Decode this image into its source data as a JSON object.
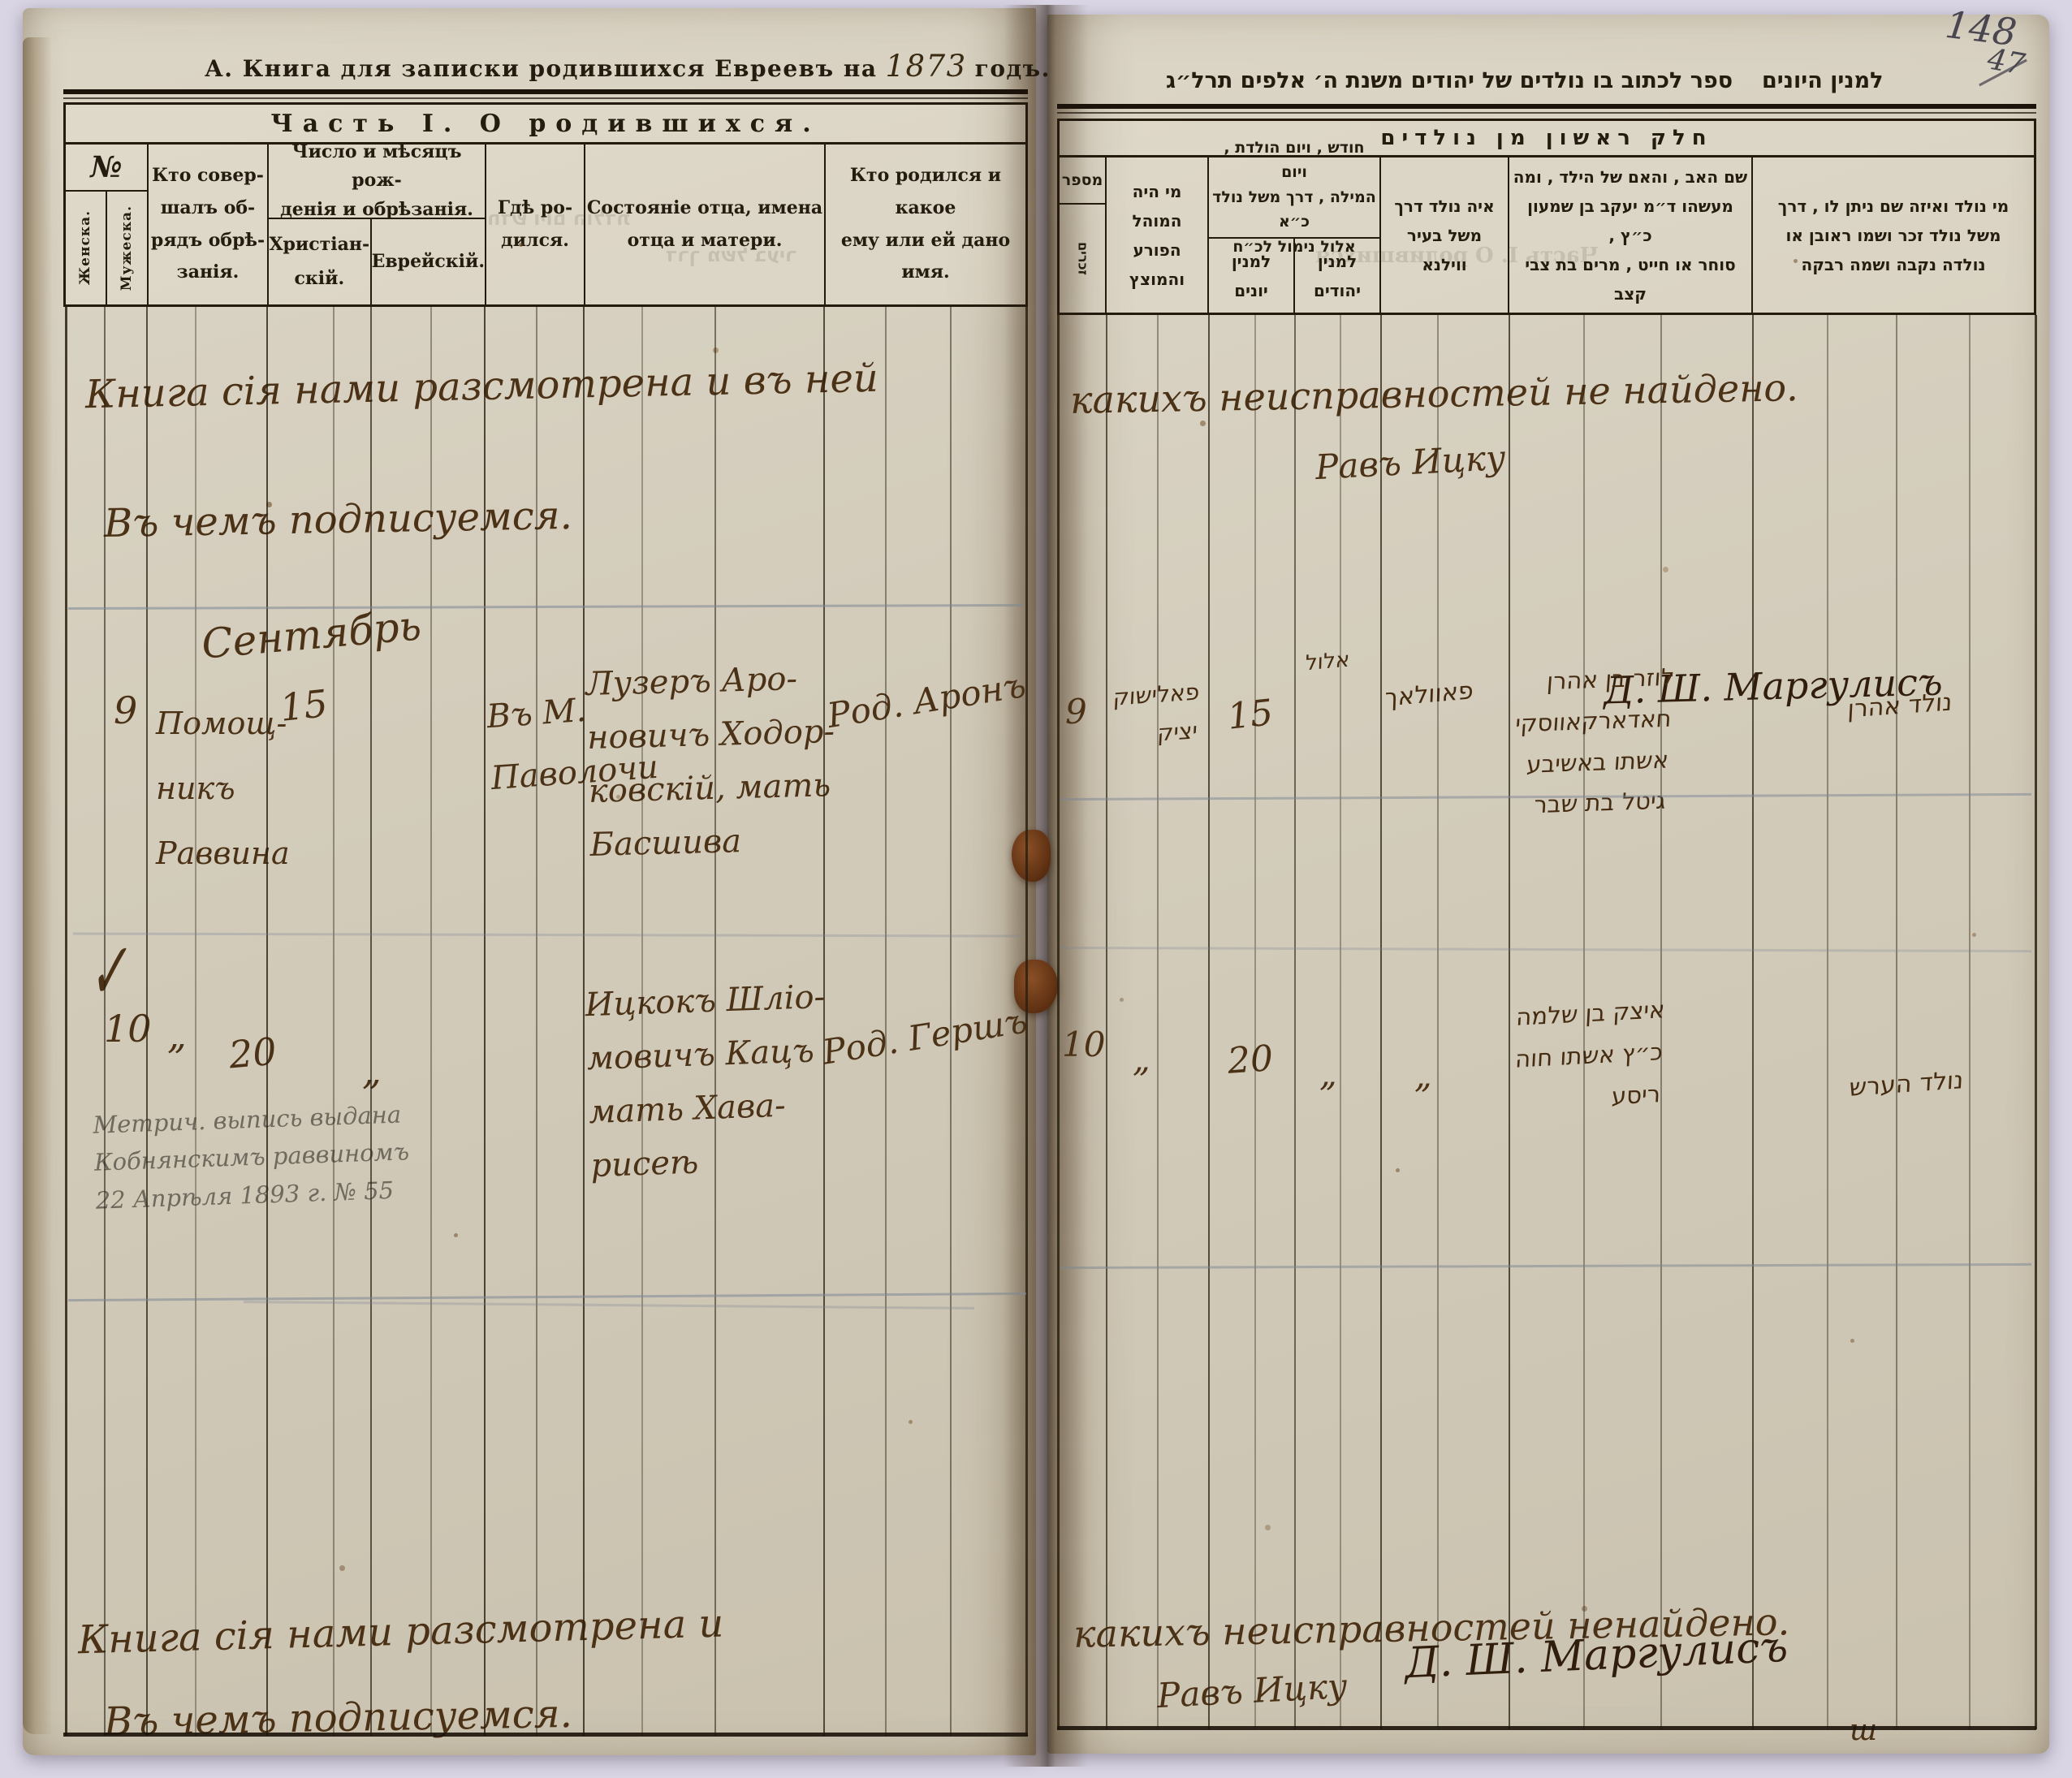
{
  "corner": {
    "page_number": "148",
    "secondary_number": "47"
  },
  "left_page": {
    "title_prefix": "А. Книга для записки родившихся Евреевъ на",
    "title_year": "1873",
    "title_suffix": "годъ.",
    "section_header": "Часть I.  О  родившихся.",
    "columns": {
      "number": "№",
      "number_female": "Женска.",
      "number_male": "Мужеска.",
      "who_performed": "Кто совер-\nшалъ об-\nрядъ обрѣ-\nзанія.",
      "date_group": "Число и мѣсяцъ рож-\nденія и обрѣзанія.",
      "date_christian": "Христіан-\nскій.",
      "date_jewish": "Еврейскій.",
      "where_born": "Гдѣ ро-\nдился.",
      "parents": "Состояніе отца, имена\nотца и матери.",
      "who_born": "Кто родился и какое\nему или ей дано имя."
    },
    "inspection_top": {
      "line1": "Книга сія нами разсмотрена и въ ней",
      "line2": "Въ чемъ подписуемся."
    },
    "inspection_bottom": {
      "line1": "Книга сія нами разсмотрена и",
      "line2": "Въ чемъ подписуемся."
    },
    "entries": [
      {
        "number": "9",
        "month": "Сентябрь",
        "circumciser": "Помощ-\nникъ\nРаввина",
        "date_christian": "15",
        "where_born": "Въ М.\nПаволочи",
        "parents": "Лузеръ Аро-\nновичъ Ходор-\nковскій, мать\nБасшива",
        "child": "Род. Аронъ"
      },
      {
        "number": "10",
        "check_mark": "✓",
        "circumciser_ditto": "„",
        "date_christian": "20",
        "where_ditto": "„",
        "parents": "Ицкокъ Шліо-\nмовичъ Кацъ\nмать Хава-\nрисеѣ",
        "child": "Род. Гершъ",
        "margin_note": "Метрич. выпись выдана\nКобнянскимъ раввиномъ\n22 Апрѣля 1893 г. № 55"
      }
    ]
  },
  "right_page": {
    "title": "ספר לכתוב בו נולדים של יהודים משנת ה׳ אלפים תרל״ג",
    "title_suffix": "למנין היונים",
    "section_header": "חלק ראשון מן נולדים",
    "columns": {
      "number": "מספר",
      "number_male": "זכרים",
      "mohel": "מי היה\nהמוהל הפורע\nוהמוצץ",
      "date_group": "חודש , ויום הולדת , ויום\nהמילה , דרך משל נולד כ״א\nאלול נימול לכ״ח",
      "date_greek": "למנין\nיונים",
      "date_jewish": "למנין\nיהודים",
      "where_born": "איה נולד דרך\nמשל בעיר\nווילנא",
      "parents": "שם האב , והאם של הילד , ומה\nמעשהו ד״מ יעקב בן שמעון כ״ץ ,\nסוחר או חייט , מרים בת צבי קצב",
      "who_born": "מי נולד ואיזה שם ניתן לו , דרך\nמשל נולד זכר ושמו ראובן או\nנולדה נקבה ושמה רבקה"
    },
    "inspection_top": {
      "line1": "какихъ неисправностей не найдено.",
      "signature_rav": "Равъ Ицку",
      "signature_margulis": "Д. Ш. Маргулисъ"
    },
    "inspection_bottom": {
      "line1": "какихъ неисправностей ненайдено.",
      "signature_rav": "Равъ Ицку",
      "signature_margulis": "Д. Ш. Маргулисъ",
      "extra_mark": "ш"
    },
    "entries": [
      {
        "number": "9",
        "mohel": "פאלישוק\nיציק",
        "date_greek": "15",
        "date_jewish": "אלול",
        "where_born": "פאוולאך",
        "parents": "לוזר בן אהרן\nחאדארקאווסקי\nאשתו באשיבע\nגיטל בת שבר",
        "child": "נולד אהרן"
      },
      {
        "number": "10",
        "mohel_ditto": "„",
        "date_greek": "20",
        "date_jewish_ditto": "„",
        "where_ditto": "„",
        "parents": "איצק בן שלמה\nכ״ץ אשתו חוה\nריסע",
        "child": "נולד הערש"
      }
    ]
  },
  "bleedthrough": {
    "ghost1": "חדש ויום הולדת",
    "ghost2": "דרך משל בעיר",
    "ghost3": "Часть I. О родившихся"
  }
}
